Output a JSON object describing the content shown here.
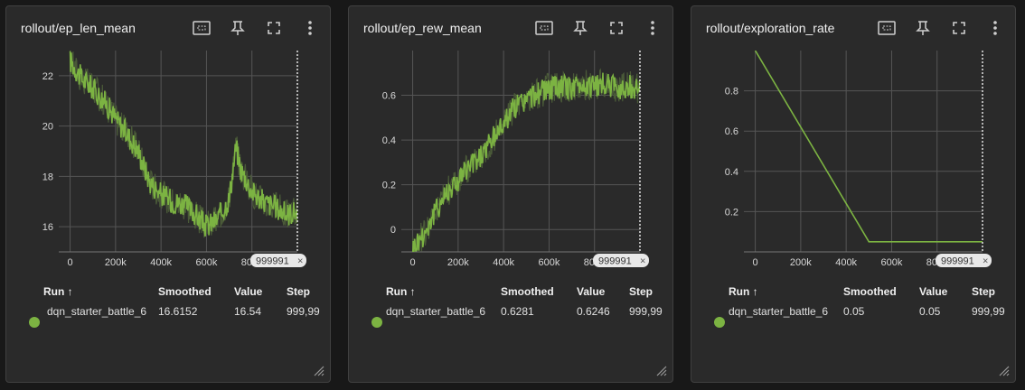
{
  "colors": {
    "series": "#7cb342",
    "shadow": "#4a5a38",
    "grid": "#555555"
  },
  "table": {
    "headers": {
      "run": "Run ↑",
      "smoothed": "Smoothed",
      "value": "Value",
      "step": "Step"
    }
  },
  "cards": [
    {
      "title": "rollout/ep_len_mean",
      "badge": "999991",
      "close": "×",
      "row": {
        "run": "dqn_starter_battle_6",
        "smoothed": "16.6152",
        "value": "16.54",
        "step": "999,99"
      },
      "chart_data": {
        "type": "line",
        "title": "rollout/ep_len_mean",
        "x_ticks": [
          "0",
          "200k",
          "400k",
          "600k",
          "800k"
        ],
        "y_ticks": [
          "16",
          "18",
          "20",
          "22"
        ],
        "xlim": [
          -50000,
          1000000
        ],
        "ylim": [
          15,
          23
        ],
        "grid": true,
        "series": [
          {
            "name": "dqn_starter_battle_6",
            "x": [
              0,
              50000,
              100000,
              150000,
              200000,
              250000,
              300000,
              350000,
              400000,
              450000,
              500000,
              550000,
              600000,
              650000,
              700000,
              730000,
              750000,
              800000,
              850000,
              900000,
              950000,
              1000000
            ],
            "y": [
              22.6,
              21.9,
              21.5,
              21.0,
              20.3,
              19.7,
              19.0,
              17.8,
              17.3,
              17.0,
              16.9,
              16.5,
              16.0,
              16.3,
              17.1,
              19.2,
              18.3,
              17.4,
              17.0,
              16.8,
              16.5,
              16.6
            ]
          }
        ]
      }
    },
    {
      "title": "rollout/ep_rew_mean",
      "badge": "999991",
      "close": "×",
      "row": {
        "run": "dqn_starter_battle_6",
        "smoothed": "0.6281",
        "value": "0.6246",
        "step": "999,99"
      },
      "chart_data": {
        "type": "line",
        "title": "rollout/ep_rew_mean",
        "x_ticks": [
          "0",
          "200k",
          "400k",
          "600k",
          "800k"
        ],
        "y_ticks": [
          "0",
          "0.2",
          "0.4",
          "0.6"
        ],
        "xlim": [
          -50000,
          1000000
        ],
        "ylim": [
          -0.1,
          0.8
        ],
        "grid": true,
        "series": [
          {
            "name": "dqn_starter_battle_6",
            "x": [
              0,
              50000,
              100000,
              150000,
              200000,
              250000,
              300000,
              350000,
              400000,
              450000,
              500000,
              550000,
              600000,
              650000,
              700000,
              750000,
              800000,
              850000,
              900000,
              950000,
              1000000
            ],
            "y": [
              -0.08,
              -0.02,
              0.08,
              0.17,
              0.22,
              0.28,
              0.33,
              0.4,
              0.48,
              0.55,
              0.58,
              0.61,
              0.63,
              0.64,
              0.63,
              0.65,
              0.64,
              0.65,
              0.63,
              0.64,
              0.63
            ]
          }
        ]
      }
    },
    {
      "title": "rollout/exploration_rate",
      "badge": "999991",
      "close": "×",
      "row": {
        "run": "dqn_starter_battle_6",
        "smoothed": "0.05",
        "value": "0.05",
        "step": "999,99"
      },
      "chart_data": {
        "type": "line",
        "title": "rollout/exploration_rate",
        "x_ticks": [
          "0",
          "200k",
          "400k",
          "600k",
          "800k"
        ],
        "y_ticks": [
          "0.2",
          "0.4",
          "0.6",
          "0.8"
        ],
        "xlim": [
          -50000,
          1000000
        ],
        "ylim": [
          0,
          1
        ],
        "grid": true,
        "series": [
          {
            "name": "dqn_starter_battle_6",
            "x": [
              0,
              500000,
              1000000
            ],
            "y": [
              1.0,
              0.05,
              0.05
            ]
          }
        ]
      }
    }
  ]
}
